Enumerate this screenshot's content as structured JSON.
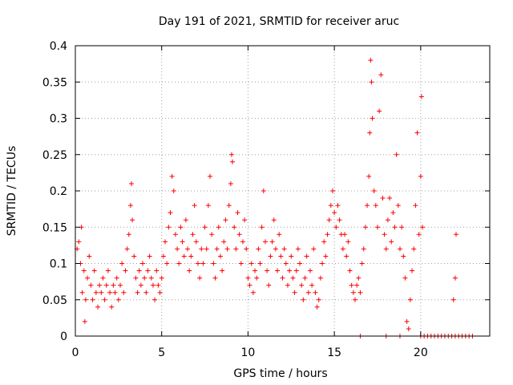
{
  "chart_data": {
    "type": "scatter",
    "title": "Day 191 of 2021, SRMTID for receiver aruc",
    "xlabel": "GPS time / hours",
    "ylabel": "SRMTID / TECUs",
    "xlim": [
      0,
      24
    ],
    "ylim": [
      0,
      0.4
    ],
    "xticks": [
      0,
      5,
      10,
      15,
      20
    ],
    "xtick_labels": [
      "0",
      "5",
      "10",
      "15",
      "20"
    ],
    "yticks": [
      0,
      0.05,
      0.1,
      0.15,
      0.2,
      0.25,
      0.3,
      0.35,
      0.4
    ],
    "ytick_labels": [
      "0",
      "0.05",
      "0.1",
      "0.15",
      "0.2",
      "0.25",
      "0.3",
      "0.35",
      "0.4"
    ],
    "grid": true,
    "marker": "+",
    "color": "#ff0000",
    "series": [
      {
        "name": "SRMTID",
        "points": [
          [
            0.1,
            0.12
          ],
          [
            0.2,
            0.13
          ],
          [
            0.3,
            0.1
          ],
          [
            0.35,
            0.15
          ],
          [
            0.4,
            0.06
          ],
          [
            0.5,
            0.09
          ],
          [
            0.55,
            0.02
          ],
          [
            0.6,
            0.05
          ],
          [
            0.7,
            0.08
          ],
          [
            0.8,
            0.11
          ],
          [
            0.9,
            0.07
          ],
          [
            1.0,
            0.05
          ],
          [
            1.1,
            0.09
          ],
          [
            1.2,
            0.06
          ],
          [
            1.3,
            0.04
          ],
          [
            1.4,
            0.07
          ],
          [
            1.5,
            0.06
          ],
          [
            1.6,
            0.08
          ],
          [
            1.7,
            0.05
          ],
          [
            1.8,
            0.07
          ],
          [
            1.9,
            0.09
          ],
          [
            2.0,
            0.06
          ],
          [
            2.1,
            0.04
          ],
          [
            2.2,
            0.07
          ],
          [
            2.3,
            0.06
          ],
          [
            2.4,
            0.08
          ],
          [
            2.5,
            0.05
          ],
          [
            2.6,
            0.07
          ],
          [
            2.7,
            0.1
          ],
          [
            2.8,
            0.06
          ],
          [
            2.9,
            0.09
          ],
          [
            3.0,
            0.12
          ],
          [
            3.1,
            0.14
          ],
          [
            3.2,
            0.18
          ],
          [
            3.25,
            0.21
          ],
          [
            3.3,
            0.16
          ],
          [
            3.4,
            0.11
          ],
          [
            3.5,
            0.08
          ],
          [
            3.6,
            0.06
          ],
          [
            3.7,
            0.09
          ],
          [
            3.8,
            0.07
          ],
          [
            3.9,
            0.1
          ],
          [
            4.0,
            0.08
          ],
          [
            4.1,
            0.06
          ],
          [
            4.2,
            0.09
          ],
          [
            4.3,
            0.11
          ],
          [
            4.4,
            0.08
          ],
          [
            4.5,
            0.07
          ],
          [
            4.6,
            0.05
          ],
          [
            4.7,
            0.09
          ],
          [
            4.8,
            0.07
          ],
          [
            4.9,
            0.06
          ],
          [
            5.0,
            0.08
          ],
          [
            5.1,
            0.11
          ],
          [
            5.2,
            0.13
          ],
          [
            5.3,
            0.1
          ],
          [
            5.4,
            0.15
          ],
          [
            5.5,
            0.17
          ],
          [
            5.6,
            0.22
          ],
          [
            5.7,
            0.2
          ],
          [
            5.8,
            0.14
          ],
          [
            5.9,
            0.12
          ],
          [
            6.0,
            0.1
          ],
          [
            6.1,
            0.15
          ],
          [
            6.2,
            0.13
          ],
          [
            6.3,
            0.11
          ],
          [
            6.4,
            0.16
          ],
          [
            6.5,
            0.12
          ],
          [
            6.6,
            0.09
          ],
          [
            6.7,
            0.11
          ],
          [
            6.8,
            0.14
          ],
          [
            6.9,
            0.18
          ],
          [
            7.0,
            0.13
          ],
          [
            7.1,
            0.1
          ],
          [
            7.2,
            0.08
          ],
          [
            7.3,
            0.12
          ],
          [
            7.4,
            0.1
          ],
          [
            7.5,
            0.15
          ],
          [
            7.6,
            0.12
          ],
          [
            7.7,
            0.18
          ],
          [
            7.8,
            0.22
          ],
          [
            7.9,
            0.14
          ],
          [
            8.0,
            0.1
          ],
          [
            8.1,
            0.08
          ],
          [
            8.2,
            0.12
          ],
          [
            8.3,
            0.15
          ],
          [
            8.4,
            0.11
          ],
          [
            8.5,
            0.09
          ],
          [
            8.6,
            0.13
          ],
          [
            8.7,
            0.16
          ],
          [
            8.8,
            0.12
          ],
          [
            8.9,
            0.18
          ],
          [
            9.0,
            0.21
          ],
          [
            9.05,
            0.25
          ],
          [
            9.1,
            0.24
          ],
          [
            9.2,
            0.15
          ],
          [
            9.3,
            0.12
          ],
          [
            9.4,
            0.17
          ],
          [
            9.5,
            0.14
          ],
          [
            9.6,
            0.1
          ],
          [
            9.7,
            0.13
          ],
          [
            9.8,
            0.16
          ],
          [
            9.9,
            0.12
          ],
          [
            10.0,
            0.08
          ],
          [
            10.1,
            0.07
          ],
          [
            10.2,
            0.1
          ],
          [
            10.3,
            0.06
          ],
          [
            10.4,
            0.09
          ],
          [
            10.5,
            0.08
          ],
          [
            10.6,
            0.12
          ],
          [
            10.7,
            0.1
          ],
          [
            10.8,
            0.15
          ],
          [
            10.9,
            0.2
          ],
          [
            11.0,
            0.13
          ],
          [
            11.1,
            0.09
          ],
          [
            11.2,
            0.07
          ],
          [
            11.3,
            0.11
          ],
          [
            11.4,
            0.13
          ],
          [
            11.5,
            0.16
          ],
          [
            11.6,
            0.12
          ],
          [
            11.7,
            0.09
          ],
          [
            11.8,
            0.14
          ],
          [
            11.9,
            0.11
          ],
          [
            12.0,
            0.08
          ],
          [
            12.1,
            0.12
          ],
          [
            12.2,
            0.1
          ],
          [
            12.3,
            0.07
          ],
          [
            12.4,
            0.09
          ],
          [
            12.5,
            0.11
          ],
          [
            12.6,
            0.08
          ],
          [
            12.7,
            0.06
          ],
          [
            12.8,
            0.09
          ],
          [
            12.9,
            0.12
          ],
          [
            13.0,
            0.1
          ],
          [
            13.1,
            0.07
          ],
          [
            13.2,
            0.05
          ],
          [
            13.3,
            0.08
          ],
          [
            13.4,
            0.11
          ],
          [
            13.5,
            0.06
          ],
          [
            13.6,
            0.09
          ],
          [
            13.7,
            0.07
          ],
          [
            13.8,
            0.12
          ],
          [
            13.9,
            0.06
          ],
          [
            14.0,
            0.04
          ],
          [
            14.1,
            0.05
          ],
          [
            14.2,
            0.08
          ],
          [
            14.3,
            0.1
          ],
          [
            14.4,
            0.13
          ],
          [
            14.5,
            0.11
          ],
          [
            14.6,
            0.14
          ],
          [
            14.7,
            0.16
          ],
          [
            14.8,
            0.18
          ],
          [
            14.9,
            0.2
          ],
          [
            15.0,
            0.17
          ],
          [
            15.1,
            0.15
          ],
          [
            15.2,
            0.18
          ],
          [
            15.3,
            0.16
          ],
          [
            15.4,
            0.14
          ],
          [
            15.5,
            0.12
          ],
          [
            15.6,
            0.14
          ],
          [
            15.7,
            0.11
          ],
          [
            15.8,
            0.13
          ],
          [
            15.9,
            0.09
          ],
          [
            16.0,
            0.07
          ],
          [
            16.1,
            0.06
          ],
          [
            16.2,
            0.05
          ],
          [
            16.3,
            0.07
          ],
          [
            16.4,
            0.08
          ],
          [
            16.5,
            0.06
          ],
          [
            16.6,
            0.1
          ],
          [
            16.7,
            0.12
          ],
          [
            16.8,
            0.15
          ],
          [
            16.9,
            0.18
          ],
          [
            17.0,
            0.22
          ],
          [
            17.05,
            0.28
          ],
          [
            17.1,
            0.38
          ],
          [
            17.15,
            0.35
          ],
          [
            17.2,
            0.3
          ],
          [
            17.3,
            0.2
          ],
          [
            17.4,
            0.18
          ],
          [
            17.5,
            0.15
          ],
          [
            17.6,
            0.31
          ],
          [
            17.7,
            0.36
          ],
          [
            17.8,
            0.19
          ],
          [
            17.9,
            0.14
          ],
          [
            18.0,
            0.12
          ],
          [
            18.1,
            0.16
          ],
          [
            18.2,
            0.19
          ],
          [
            18.3,
            0.13
          ],
          [
            18.4,
            0.17
          ],
          [
            18.5,
            0.15
          ],
          [
            18.6,
            0.25
          ],
          [
            18.7,
            0.18
          ],
          [
            18.8,
            0.12
          ],
          [
            18.9,
            0.15
          ],
          [
            19.0,
            0.11
          ],
          [
            19.1,
            0.08
          ],
          [
            19.2,
            0.02
          ],
          [
            19.3,
            0.01
          ],
          [
            19.4,
            0.05
          ],
          [
            19.5,
            0.09
          ],
          [
            19.6,
            0.12
          ],
          [
            19.7,
            0.18
          ],
          [
            19.8,
            0.28
          ],
          [
            19.9,
            0.14
          ],
          [
            20.0,
            0.22
          ],
          [
            20.05,
            0.33
          ],
          [
            20.1,
            0.15
          ],
          [
            21.9,
            0.05
          ],
          [
            22.0,
            0.08
          ],
          [
            22.05,
            0.14
          ],
          [
            16.5,
            0.0
          ],
          [
            18.0,
            0.0
          ],
          [
            18.8,
            0.0
          ],
          [
            20.0,
            0.0
          ],
          [
            20.2,
            0.0
          ],
          [
            20.4,
            0.0
          ],
          [
            20.6,
            0.0
          ],
          [
            20.8,
            0.0
          ],
          [
            21.0,
            0.0
          ],
          [
            21.2,
            0.0
          ],
          [
            21.4,
            0.0
          ],
          [
            21.6,
            0.0
          ],
          [
            21.8,
            0.0
          ],
          [
            22.0,
            0.0
          ],
          [
            22.2,
            0.0
          ],
          [
            22.4,
            0.0
          ],
          [
            22.6,
            0.0
          ],
          [
            22.8,
            0.0
          ],
          [
            23.0,
            0.0
          ]
        ]
      }
    ]
  }
}
